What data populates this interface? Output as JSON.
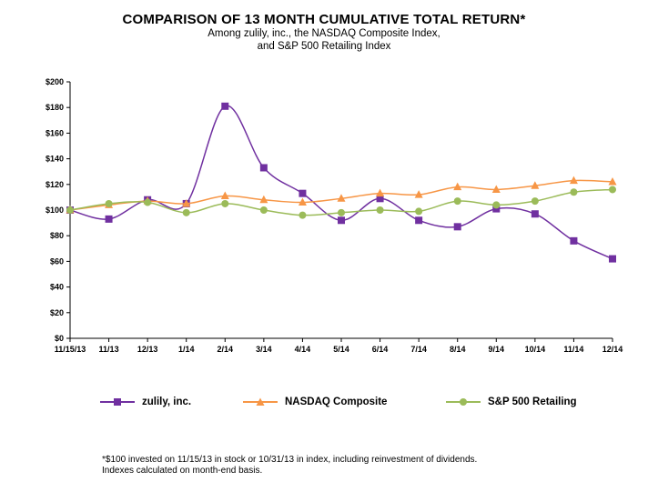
{
  "chart_data": {
    "type": "line",
    "title": "COMPARISON OF 13 MONTH CUMULATIVE TOTAL RETURN*",
    "subtitle_1": "Among zulily, inc., the NASDAQ Composite Index,",
    "subtitle_2": "and S&P 500 Retailing Index",
    "categories": [
      "11/15/13",
      "11/13",
      "12/13",
      "1/14",
      "2/14",
      "3/14",
      "4/14",
      "5/14",
      "6/14",
      "7/14",
      "8/14",
      "9/14",
      "10/14",
      "11/14",
      "12/14"
    ],
    "ylim": [
      0,
      200
    ],
    "yticks": [
      0,
      20,
      40,
      60,
      80,
      100,
      120,
      140,
      160,
      180,
      200
    ],
    "ytick_labels": [
      "$0",
      "$20",
      "$40",
      "$60",
      "$80",
      "$100",
      "$120",
      "$140",
      "$160",
      "$180",
      "$200"
    ],
    "series": [
      {
        "name": "zulily, inc.",
        "marker": "square",
        "color": "#7030A0",
        "values": [
          100,
          93,
          108,
          105,
          181,
          133,
          113,
          92,
          109,
          92,
          87,
          101,
          97,
          76,
          62
        ]
      },
      {
        "name": "NASDAQ Composite",
        "marker": "triangle",
        "color": "#F79646",
        "values": [
          100,
          104,
          107,
          105,
          111,
          108,
          106,
          109,
          113,
          112,
          118,
          116,
          119,
          123,
          122
        ]
      },
      {
        "name": "S&P 500 Retailing",
        "marker": "circle",
        "color": "#9BBB59",
        "values": [
          100,
          105,
          106,
          98,
          105,
          100,
          96,
          98,
          100,
          99,
          107,
          104,
          107,
          114,
          116
        ]
      }
    ]
  },
  "footnote_1": "*$100 invested on 11/15/13 in stock or 10/31/13 in index, including reinvestment of dividends.",
  "footnote_2": "Indexes calculated on month-end basis."
}
